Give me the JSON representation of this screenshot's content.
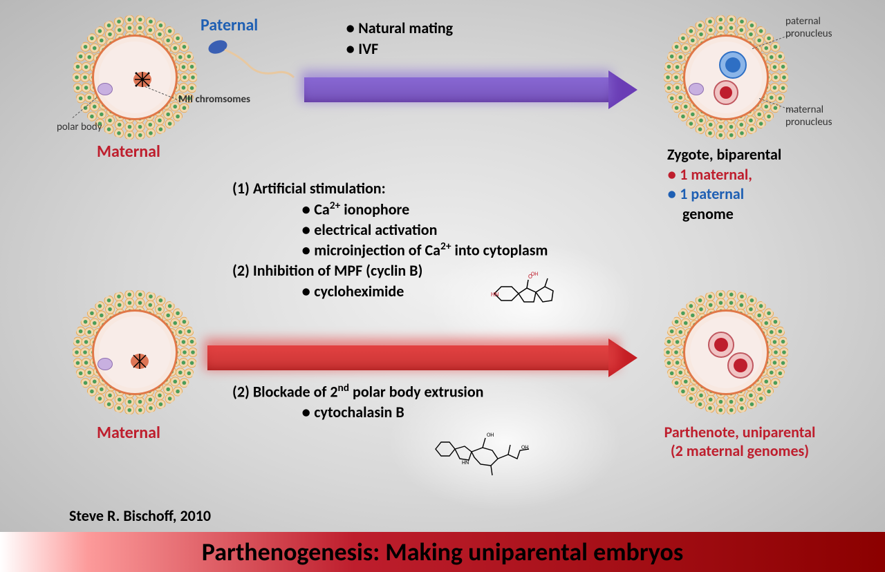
{
  "title": "Parthenogenesis:  Making uniparental embryos",
  "attribution": "Steve R. Bischoff, 2010",
  "labels": {
    "paternal": "Paternal",
    "maternal": "Maternal",
    "polar_body": "polar body",
    "mii": "MII chromsomes",
    "paternal_pronucleus": "paternal\npronucleus",
    "maternal_pronucleus": "maternal\npronucleus"
  },
  "top_process": {
    "bullets": [
      "Natural mating",
      "IVF"
    ]
  },
  "bottom_process": {
    "step1_title": "(1) Artificial stimulation:",
    "step1_bullets": [
      "Ca2+ ionophore",
      "electrical activation",
      "microinjection of Ca2+ into cytoplasm"
    ],
    "step2a_title": "(2) Inhibition of MPF (cyclin B)",
    "step2a_bullet": "cycloheximide",
    "step2b_title": "(2) Blockade of 2nd polar body extrusion",
    "step2b_bullet": "cytochalasin B"
  },
  "results": {
    "zygote_title": "Zygote, biparental",
    "zygote_maternal": "1 maternal,",
    "zygote_paternal": "1 paternal",
    "zygote_genome": "genome",
    "parthenote_line1": "Parthenote, uniparental",
    "parthenote_line2": "(2 maternal genomes)"
  },
  "colors": {
    "purple_arrow": "#6a3db5",
    "red_arrow": "#c41e24",
    "paternal_blue": "#1e5fb3",
    "maternal_red": "#be1e2d",
    "corona_dot": "#4a9d5a",
    "corona_ring": "#e8a858",
    "zona": "#e07848",
    "cytoplasm": "#f8ece8",
    "polar_body": "#c8b0e0",
    "chromatin": "#d65830",
    "pat_pronuc_fill": "#2e6fc4",
    "pat_pronuc_border": "#1a4a8a",
    "mat_pronuc_fill": "#e8a8a8",
    "mat_pronuc_border": "#c05860",
    "mat_pronuc_inner": "#be1e2d"
  }
}
